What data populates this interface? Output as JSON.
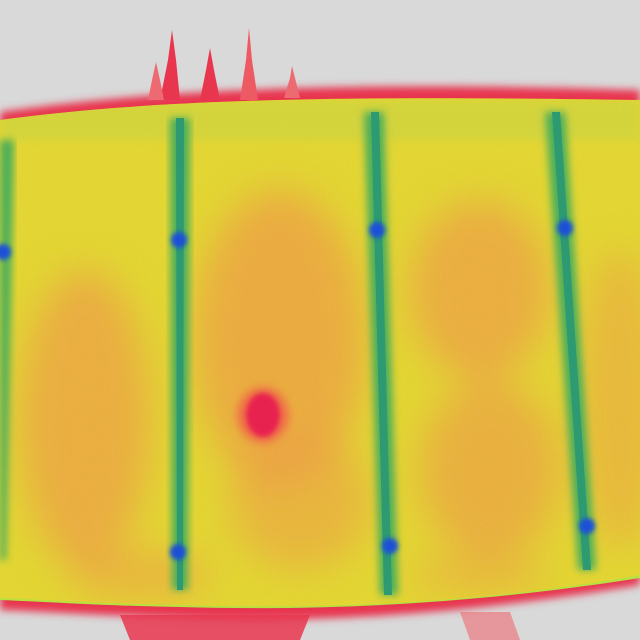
{
  "image": {
    "kind": "thermal-infrared-photo",
    "subject": "solar-panel-module",
    "palette": {
      "background": "#d9d9d9",
      "edge_hot": "#e8364f",
      "edge_warm": "#f06a4a",
      "cell_base": "#e6d82a",
      "cell_warm": "#f0a03c",
      "seam": "#4cae5a",
      "seam_core": "#2d9a72",
      "junction_cold": "#1f4fd8",
      "hotspot": "#e8234f",
      "panel_outline": "#b8e040"
    }
  }
}
